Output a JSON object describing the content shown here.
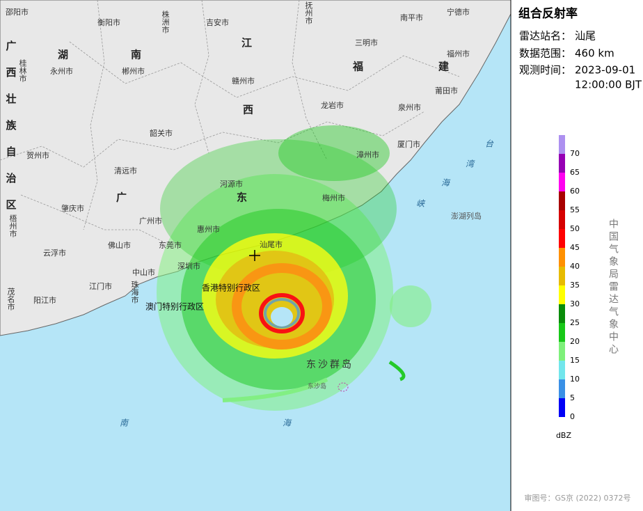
{
  "panel": {
    "title": "组合反射率",
    "station_label": "雷达站名：",
    "station": "汕尾",
    "range_label": "数据范围：",
    "range": "460 km",
    "time_label": "观测时间：",
    "time_date": "2023-09-01",
    "time_clock": "12:00:00 BJT",
    "agency": "中国气象局雷达气象中心",
    "approval": "审图号：GS京 (2022) 0372号"
  },
  "legend": {
    "unit": "dBZ",
    "range": [
      0,
      75
    ],
    "ticks": [
      0,
      5,
      10,
      15,
      20,
      25,
      30,
      35,
      40,
      45,
      50,
      55,
      60,
      65,
      70
    ],
    "colors": [
      "#0000f6",
      "#3a90e6",
      "#72e6ec",
      "#7ef07a",
      "#18c818",
      "#0a8c0a",
      "#ffff00",
      "#e7bb00",
      "#ff9000",
      "#ff0000",
      "#d60000",
      "#a80000",
      "#ff00f0",
      "#9600b4",
      "#ad90f0"
    ]
  },
  "map": {
    "labels": [
      "邵阳市",
      "衡阳市",
      "株洲市",
      "吉安市",
      "抚州市",
      "南平市",
      "宁德市",
      "江",
      "三明市",
      "福州市",
      "湖",
      "南",
      "永州市",
      "郴州市",
      "福",
      "建",
      "桂林市",
      "广西壮族自治区",
      "赣州市",
      "西",
      "莆田市",
      "泉州市",
      "龙岩市",
      "韶关市",
      "贺州市",
      "漳州市",
      "厦门市",
      "清远市",
      "广",
      "河源市",
      "梅州市",
      "东",
      "台",
      "湾",
      "海",
      "峡",
      "澎湖列岛",
      "梧州市",
      "肇庆市",
      "广州市",
      "惠州市",
      "汕尾市",
      "云浮市",
      "佛山市",
      "东莞市",
      "中山市",
      "深圳市",
      "茂名市",
      "江门市",
      "珠海市",
      "香港特别行政区",
      "澳门特别行政区",
      "阳江市",
      "东沙群岛",
      "东沙岛",
      "南",
      "海"
    ]
  }
}
